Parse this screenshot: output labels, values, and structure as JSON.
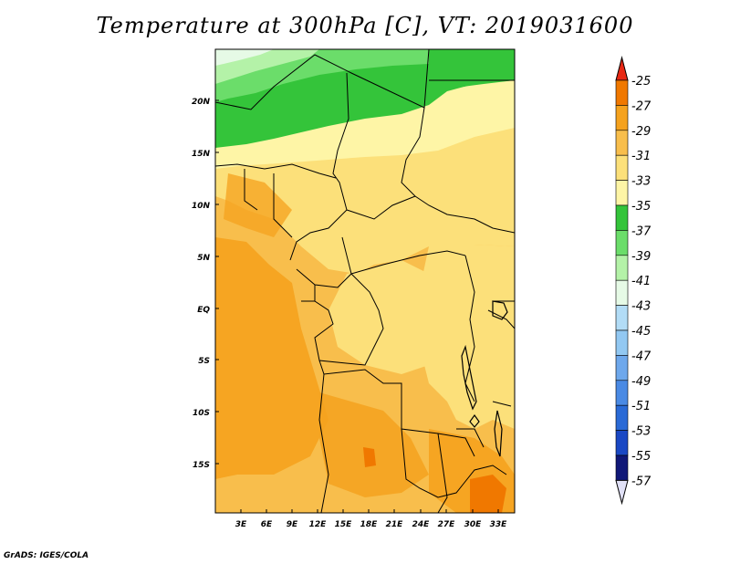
{
  "title": "Temperature at 300hPa [C], VT: 2019031600",
  "credit": "GrADS: IGES/COLA",
  "map": {
    "lat_labels": [
      "20N",
      "15N",
      "10N",
      "5N",
      "EQ",
      "5S",
      "10S",
      "15S"
    ],
    "lon_labels": [
      "3E",
      "6E",
      "9E",
      "12E",
      "15E",
      "18E",
      "21E",
      "24E",
      "27E",
      "30E",
      "33E"
    ]
  },
  "colorbar": {
    "levels": [
      {
        "label": "-25",
        "color": "#e8400a"
      },
      {
        "label": "-27",
        "color": "#f07800"
      },
      {
        "label": "-29",
        "color": "#f5a21e"
      },
      {
        "label": "-31",
        "color": "#f8be4c"
      },
      {
        "label": "-33",
        "color": "#fce07a"
      },
      {
        "label": "-35",
        "color": "#fef5a6"
      },
      {
        "label": "-37",
        "color": "#34c43a"
      },
      {
        "label": "-39",
        "color": "#6bdd6a"
      },
      {
        "label": "-41",
        "color": "#b4f2a8"
      },
      {
        "label": "-43",
        "color": "#e6fae6"
      },
      {
        "label": "-45",
        "color": "#b2dcf6"
      },
      {
        "label": "-47",
        "color": "#92c8f2"
      },
      {
        "label": "-49",
        "color": "#6ea8ec"
      },
      {
        "label": "-51",
        "color": "#4a8ae4"
      },
      {
        "label": "-53",
        "color": "#2a6ad6"
      },
      {
        "label": "-55",
        "color": "#1a48c4"
      },
      {
        "label": "-57",
        "color": "#101878"
      }
    ],
    "top_color": "#e82814",
    "bottom_color": "#e0e0f6"
  }
}
